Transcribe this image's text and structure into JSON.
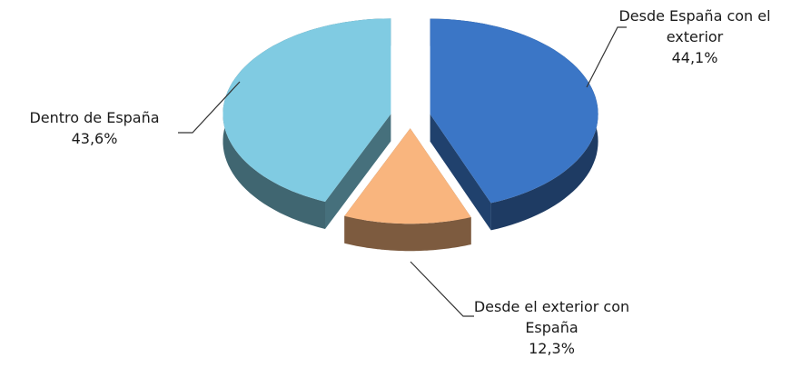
{
  "chart_data": {
    "type": "pie3d",
    "categories": [
      "Desde España con el exterior",
      "Desde el exterior con España",
      "Dentro de España"
    ],
    "values": [
      44.1,
      12.3,
      43.6
    ],
    "value_labels": [
      "44,1%",
      "12,3%",
      "43,6%"
    ],
    "colors": [
      "#3b76c6",
      "#f9b57e",
      "#80cbe2"
    ]
  }
}
